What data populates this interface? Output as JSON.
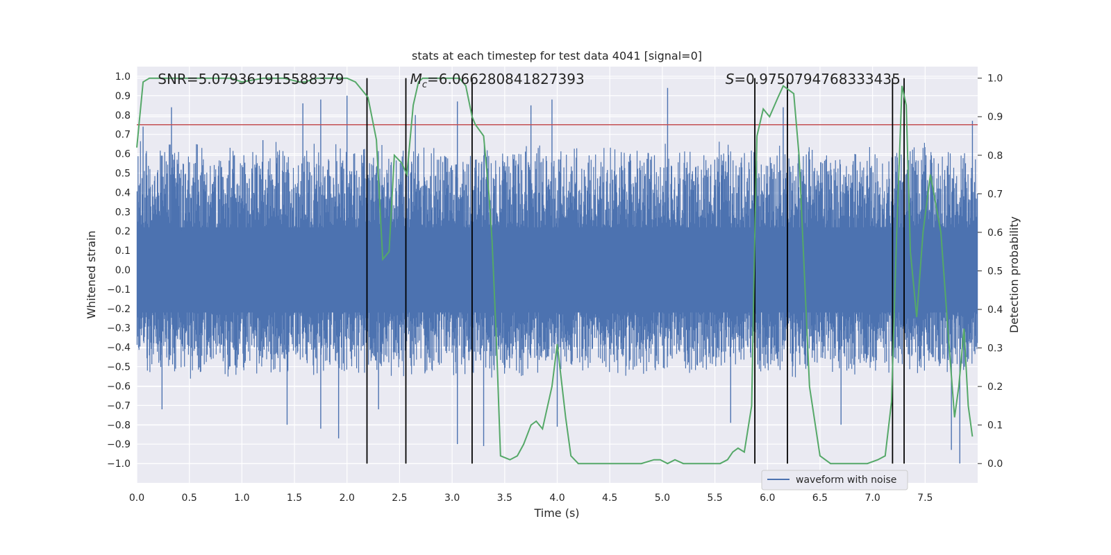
{
  "chart_data": {
    "type": "line",
    "title": "stats at each timestep for test data 4041 [signal=0]",
    "xlabel": "Time (s)",
    "ylabel": "Whitened strain",
    "y2label": "Detection probability",
    "xlim": [
      0,
      8
    ],
    "ylim": [
      -1.1,
      1.05
    ],
    "y2lim": [
      -0.05,
      1.03
    ],
    "xticks": [
      0.0,
      0.5,
      1.0,
      1.5,
      2.0,
      2.5,
      3.0,
      3.5,
      4.0,
      4.5,
      5.0,
      5.5,
      6.0,
      6.5,
      7.0,
      7.5
    ],
    "xtick_labels": [
      "0.0",
      "0.5",
      "1.0",
      "1.5",
      "2.0",
      "2.5",
      "3.0",
      "3.5",
      "4.0",
      "4.5",
      "5.0",
      "5.5",
      "6.0",
      "6.5",
      "7.0",
      "7.5"
    ],
    "yticks": [
      1.0,
      0.9,
      0.8,
      0.7,
      0.6,
      0.5,
      0.4,
      0.3,
      0.2,
      0.1,
      0.0,
      -0.1,
      -0.2,
      -0.3,
      -0.4,
      -0.5,
      -0.6,
      -0.7,
      -0.8,
      -0.9,
      -1.0
    ],
    "ytick_labels": [
      "1.0",
      "0.9",
      "0.8",
      "0.7",
      "0.6",
      "0.5",
      "0.4",
      "0.3",
      "0.2",
      "0.1",
      "0.0",
      "−0.1",
      "−0.2",
      "−0.3",
      "−0.4",
      "−0.5",
      "−0.6",
      "−0.7",
      "−0.8",
      "−0.9",
      "−1.0"
    ],
    "y2ticks": [
      1.0,
      0.9,
      0.8,
      0.7,
      0.6,
      0.5,
      0.4,
      0.3,
      0.2,
      0.1,
      0.0
    ],
    "y2tick_labels": [
      "1.0",
      "0.9",
      "0.8",
      "0.7",
      "0.6",
      "0.5",
      "0.4",
      "0.3",
      "0.2",
      "0.1",
      "0.0"
    ],
    "waveform": {
      "name": "waveform with noise",
      "color": "#4c72b0",
      "dense_range": [
        -0.45,
        0.55
      ],
      "positive_spikes": [
        [
          0.06,
          0.74
        ],
        [
          0.33,
          0.84
        ],
        [
          1.2,
          0.67
        ],
        [
          1.58,
          0.86
        ],
        [
          1.75,
          0.88
        ],
        [
          2.0,
          0.9
        ],
        [
          2.65,
          0.8
        ],
        [
          3.05,
          0.87
        ],
        [
          3.75,
          0.85
        ],
        [
          3.95,
          0.88
        ],
        [
          5.05,
          0.94
        ],
        [
          5.88,
          0.78
        ],
        [
          6.15,
          0.84
        ],
        [
          7.3,
          0.78
        ],
        [
          7.95,
          0.77
        ]
      ],
      "negative_spikes": [
        [
          0.24,
          -0.72
        ],
        [
          1.43,
          -0.8
        ],
        [
          1.75,
          -0.82
        ],
        [
          1.92,
          -0.87
        ],
        [
          2.3,
          -0.72
        ],
        [
          3.05,
          -0.9
        ],
        [
          3.3,
          -0.91
        ],
        [
          4.0,
          -0.81
        ],
        [
          5.65,
          -0.79
        ],
        [
          6.7,
          -0.8
        ],
        [
          7.75,
          -0.93
        ],
        [
          7.83,
          -1.0
        ]
      ]
    },
    "threshold": {
      "value": 0.75,
      "color": "#c44e52"
    },
    "probability": {
      "color": "#55a868",
      "x": [
        0.0,
        0.06,
        0.12,
        0.2,
        0.3,
        0.5,
        0.7,
        0.9,
        1.0,
        1.2,
        1.4,
        1.55,
        1.6,
        1.7,
        1.8,
        1.9,
        2.0,
        2.08,
        2.2,
        2.28,
        2.34,
        2.4,
        2.45,
        2.52,
        2.57,
        2.63,
        2.68,
        2.72,
        2.8,
        2.93,
        3.0,
        3.07,
        3.13,
        3.19,
        3.22,
        3.3,
        3.35,
        3.38,
        3.42,
        3.46,
        3.55,
        3.62,
        3.68,
        3.75,
        3.8,
        3.86,
        3.95,
        4.0,
        4.08,
        4.13,
        4.2,
        4.5,
        4.8,
        4.92,
        4.98,
        5.05,
        5.12,
        5.2,
        5.35,
        5.55,
        5.62,
        5.67,
        5.72,
        5.78,
        5.85,
        5.88,
        5.9,
        5.96,
        6.02,
        6.1,
        6.15,
        6.2,
        6.25,
        6.3,
        6.4,
        6.5,
        6.6,
        6.7,
        6.8,
        6.95,
        7.05,
        7.12,
        7.18,
        7.23,
        7.28,
        7.32,
        7.36,
        7.42,
        7.48,
        7.55,
        7.65,
        7.73,
        7.78,
        7.82,
        7.87,
        7.91,
        7.95
      ],
      "y": [
        0.82,
        0.99,
        1.0,
        1.0,
        1.0,
        1.0,
        1.0,
        1.0,
        0.99,
        1.0,
        1.0,
        0.99,
        0.99,
        1.0,
        1.0,
        1.0,
        1.0,
        0.99,
        0.95,
        0.84,
        0.53,
        0.55,
        0.8,
        0.78,
        0.75,
        0.93,
        0.99,
        1.0,
        1.0,
        1.0,
        1.0,
        1.0,
        0.98,
        0.9,
        0.88,
        0.85,
        0.7,
        0.58,
        0.33,
        0.02,
        0.01,
        0.02,
        0.05,
        0.1,
        0.11,
        0.09,
        0.2,
        0.31,
        0.12,
        0.02,
        0.0,
        0.0,
        0.0,
        0.01,
        0.01,
        0.0,
        0.01,
        0.0,
        0.0,
        0.0,
        0.01,
        0.03,
        0.04,
        0.03,
        0.15,
        0.6,
        0.85,
        0.92,
        0.9,
        0.95,
        0.98,
        0.97,
        0.96,
        0.8,
        0.2,
        0.02,
        0.0,
        0.0,
        0.0,
        0.0,
        0.01,
        0.02,
        0.16,
        0.6,
        0.98,
        0.93,
        0.55,
        0.38,
        0.6,
        0.75,
        0.6,
        0.3,
        0.12,
        0.2,
        0.35,
        0.15,
        0.07
      ]
    },
    "vlines": [
      2.19,
      2.56,
      3.19,
      5.88,
      6.19,
      7.19,
      7.3
    ],
    "annotations": [
      {
        "text": "SNR=5.079361915588379",
        "x": 0.2
      },
      {
        "prefix": "M",
        "sub": "c",
        "text": "=6.066280841827393",
        "x": 2.6
      },
      {
        "prefix": "S",
        "text": "=0.9750794768333435",
        "x": 5.6
      }
    ],
    "legend": {
      "label": "waveform with noise",
      "position": "lower-right"
    }
  }
}
